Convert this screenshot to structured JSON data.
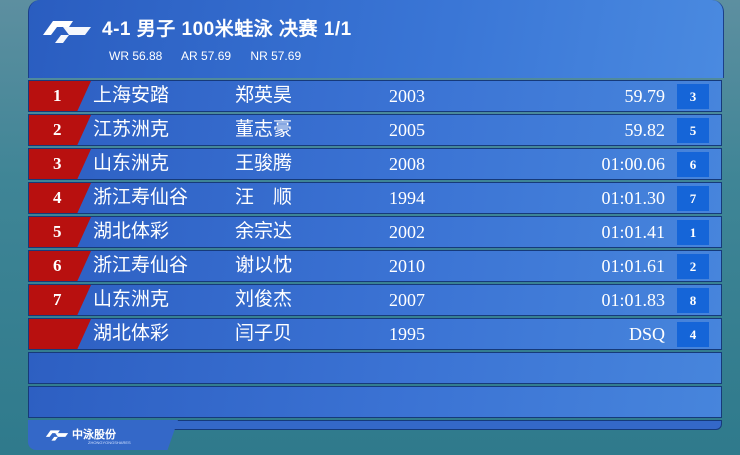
{
  "header": {
    "title": "4-1 男子 100米蛙泳 决赛 1/1",
    "records": [
      "WR 56.88",
      "AR 57.69",
      "NR 57.69"
    ]
  },
  "results": [
    {
      "rank": "1",
      "team": "上海安踏",
      "name": "郑英昊",
      "year": "2003",
      "time": "59.79",
      "lane": "3"
    },
    {
      "rank": "2",
      "team": "江苏洲克",
      "name": "董志豪",
      "year": "2005",
      "time": "59.82",
      "lane": "5"
    },
    {
      "rank": "3",
      "team": "山东洲克",
      "name": "王骏腾",
      "year": "2008",
      "time": "01:00.06",
      "lane": "6"
    },
    {
      "rank": "4",
      "team": "浙江寿仙谷",
      "name": "汪　顺",
      "year": "1994",
      "time": "01:01.30",
      "lane": "7"
    },
    {
      "rank": "5",
      "team": "湖北体彩",
      "name": "余宗达",
      "year": "2002",
      "time": "01:01.41",
      "lane": "1"
    },
    {
      "rank": "6",
      "team": "浙江寿仙谷",
      "name": "谢以忱",
      "year": "2010",
      "time": "01:01.61",
      "lane": "2"
    },
    {
      "rank": "7",
      "team": "山东洲克",
      "name": "刘俊杰",
      "year": "2007",
      "time": "01:01.83",
      "lane": "8"
    },
    {
      "rank": "",
      "team": "湖北体彩",
      "name": "闫子贝",
      "year": "1995",
      "time": "DSQ",
      "lane": "4"
    }
  ],
  "footer": {
    "brand": "中泳股份",
    "brand_sub": "ZHONGYONGSHARES"
  },
  "colors": {
    "panel": "#3a76d6",
    "rank_bg": "#b8100f",
    "lane_bg": "#1565d8"
  }
}
